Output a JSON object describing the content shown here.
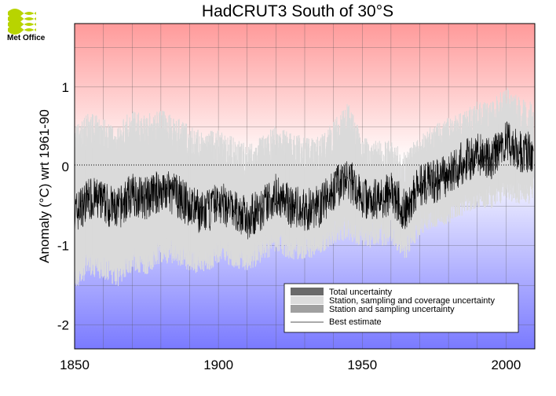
{
  "logo": {
    "text": "Met Office"
  },
  "chart_data": {
    "type": "line",
    "title": "HadCRUT3 South of 30°S",
    "xlabel": "",
    "ylabel": "Anomaly (°C) wrt 1961-90",
    "xlim": [
      1850,
      2010
    ],
    "ylim": [
      -2.3,
      1.8
    ],
    "xticks": [
      1850,
      1900,
      1950,
      2000
    ],
    "yticks": [
      -2,
      -1,
      0,
      1
    ],
    "grid": true,
    "background": "gradient red (top, positive) to blue (bottom, negative)",
    "legend_position": "bottom-right",
    "legend": [
      {
        "label": "Total uncertainty",
        "color": "#6a6a6a",
        "kind": "box"
      },
      {
        "label": "Station, sampling and coverage uncertainty",
        "color": "#dcdcdc",
        "kind": "box"
      },
      {
        "label": "Station and sampling uncertainty",
        "color": "#a0a0a0",
        "kind": "box"
      },
      {
        "label": "Best estimate",
        "color": "#000000",
        "kind": "line"
      }
    ],
    "series": [
      {
        "name": "Best estimate",
        "x": [
          1850,
          1855,
          1860,
          1865,
          1870,
          1875,
          1880,
          1885,
          1890,
          1895,
          1900,
          1905,
          1910,
          1915,
          1920,
          1925,
          1930,
          1935,
          1940,
          1945,
          1950,
          1955,
          1960,
          1965,
          1970,
          1975,
          1980,
          1985,
          1990,
          1995,
          2000,
          2005,
          2009
        ],
        "values": [
          -0.6,
          -0.4,
          -0.45,
          -0.55,
          -0.35,
          -0.4,
          -0.3,
          -0.35,
          -0.5,
          -0.6,
          -0.45,
          -0.55,
          -0.65,
          -0.55,
          -0.35,
          -0.5,
          -0.55,
          -0.5,
          -0.3,
          -0.15,
          -0.4,
          -0.4,
          -0.35,
          -0.55,
          -0.25,
          -0.2,
          -0.1,
          0.05,
          0.15,
          0.1,
          0.3,
          0.2,
          0.15
        ]
      },
      {
        "name": "Total uncertainty",
        "x": [
          1850,
          1855,
          1860,
          1865,
          1870,
          1875,
          1880,
          1885,
          1890,
          1895,
          1900,
          1905,
          1910,
          1915,
          1920,
          1925,
          1930,
          1935,
          1940,
          1945,
          1950,
          1955,
          1960,
          1965,
          1970,
          1975,
          1980,
          1985,
          1990,
          1995,
          2000,
          2005,
          2009
        ],
        "lower": [
          -1.4,
          -1.2,
          -1.25,
          -1.35,
          -1.15,
          -1.2,
          -1.05,
          -1.05,
          -1.15,
          -1.2,
          -1.05,
          -1.1,
          -1.15,
          -1.05,
          -0.9,
          -1.0,
          -1.0,
          -0.95,
          -0.8,
          -0.75,
          -0.85,
          -0.85,
          -0.8,
          -1.0,
          -0.7,
          -0.6,
          -0.55,
          -0.45,
          -0.35,
          -0.4,
          -0.25,
          -0.3,
          -0.3
        ],
        "upper": [
          0.3,
          0.45,
          0.4,
          0.3,
          0.5,
          0.45,
          0.5,
          0.4,
          0.3,
          0.2,
          0.25,
          0.15,
          0.05,
          0.15,
          0.3,
          0.2,
          0.15,
          0.15,
          0.35,
          0.6,
          0.15,
          0.1,
          0.1,
          -0.05,
          0.2,
          0.3,
          0.4,
          0.5,
          0.6,
          0.6,
          0.8,
          0.65,
          0.6
        ]
      }
    ]
  }
}
